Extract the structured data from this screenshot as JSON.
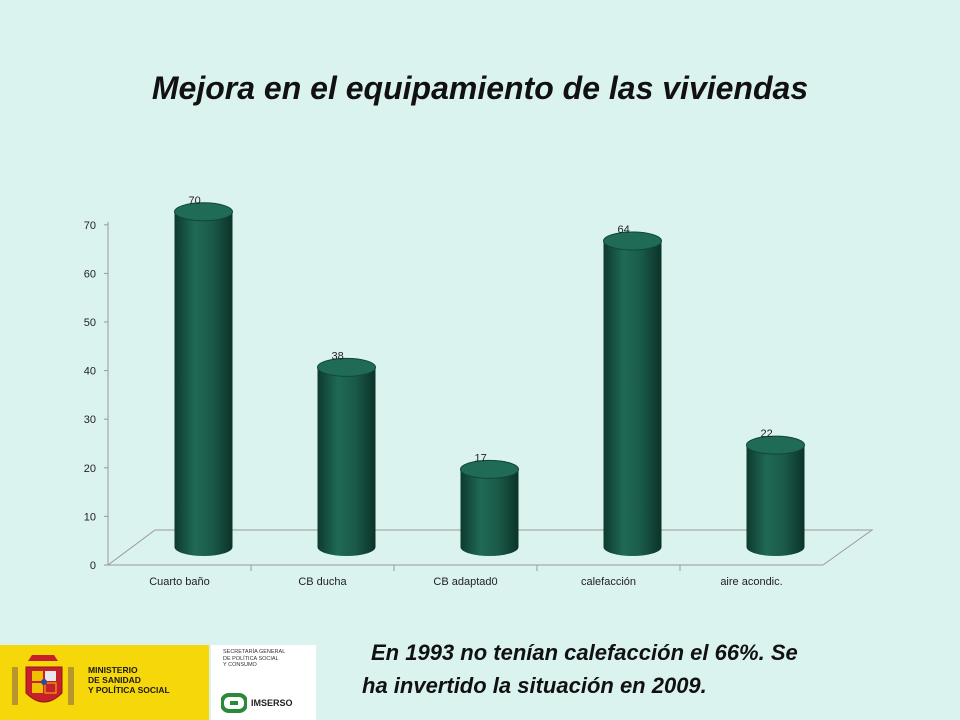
{
  "title": "Mejora en el equipamiento de las viviendas",
  "caption": {
    "line1": "En 1993 no tenían calefacción el 66%. Se",
    "line2": "ha invertido la situación en 2009."
  },
  "logos": {
    "ministry_lines": [
      "MINISTERIO",
      "DE SANIDAD",
      "Y POLÍTICA SOCIAL"
    ],
    "secretaria_lines": [
      "SECRETARÍA GENERAL",
      "DE POLÍTICA SOCIAL",
      "Y CONSUMO"
    ],
    "imserso": "IMSERSO"
  },
  "colors": {
    "background": "#dbf3ef",
    "bar": "#1a5a48",
    "logo_yellow": "#f6d70a"
  },
  "chart_data": {
    "type": "bar",
    "categories": [
      "Cuarto baño",
      "CB ducha",
      "CB adaptad0",
      "calefacción",
      "aire acondic."
    ],
    "values": [
      70,
      38,
      17,
      64,
      22
    ],
    "data_labels": [
      "70",
      "38",
      "17",
      "64",
      "22"
    ],
    "ylim": [
      0,
      70
    ],
    "yticks": [
      0,
      10,
      20,
      30,
      40,
      50,
      60,
      70
    ],
    "title": "",
    "xlabel": "",
    "ylabel": "",
    "grid": false,
    "legend": "none"
  }
}
